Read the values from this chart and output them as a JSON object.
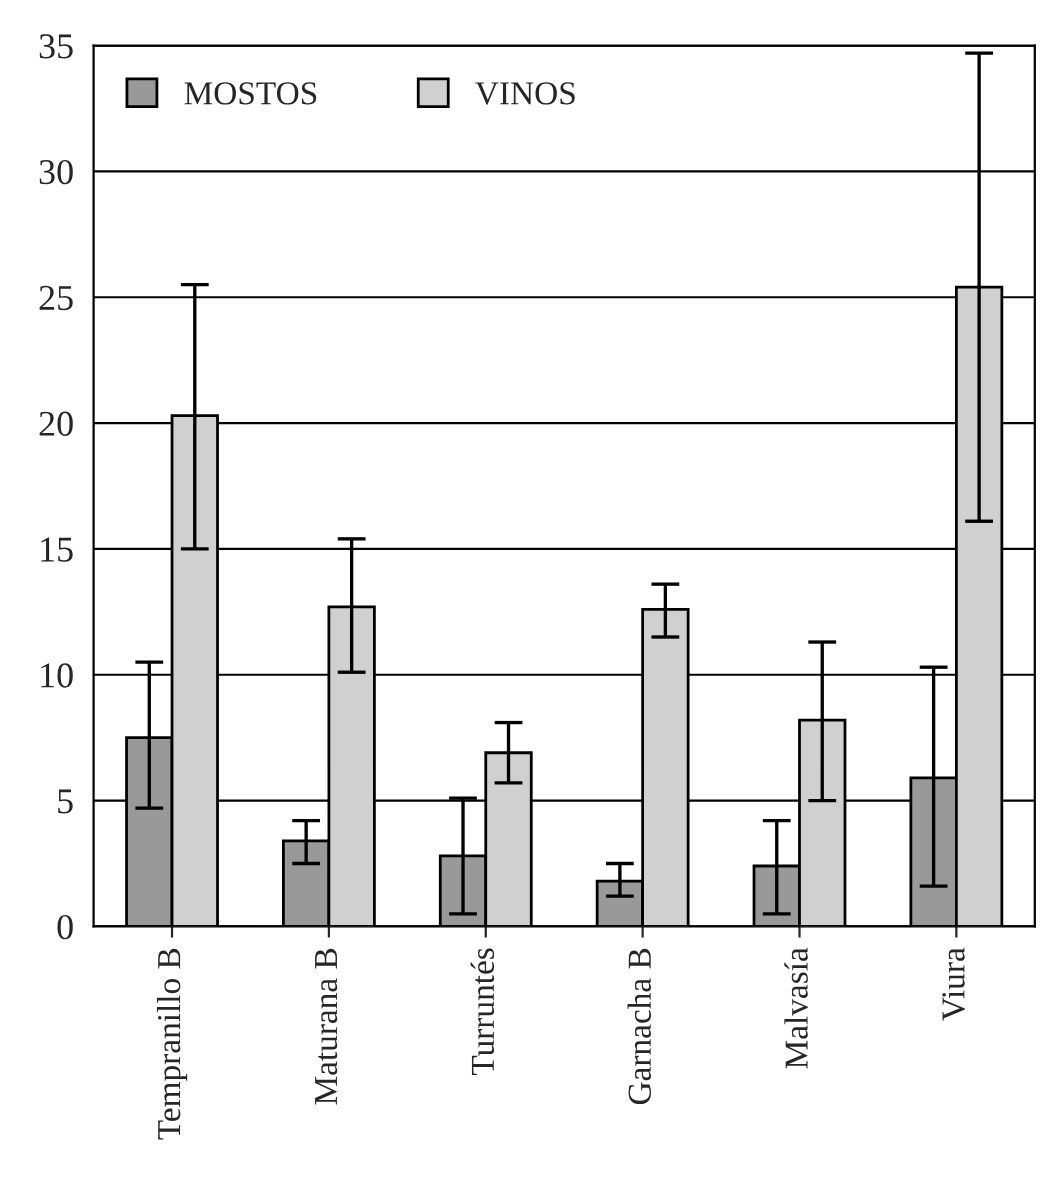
{
  "chart_data": {
    "type": "bar",
    "categories": [
      "Tempranillo B",
      "Maturana B",
      "Turruntés",
      "Garnacha B",
      "Malvasía",
      "Viura"
    ],
    "series": [
      {
        "name": "MOSTOS",
        "color": "#999999",
        "values": [
          7.5,
          3.4,
          2.8,
          1.8,
          2.4,
          5.9
        ],
        "errors": [
          [
            4.7,
            10.5
          ],
          [
            2.5,
            4.2
          ],
          [
            0.5,
            5.1
          ],
          [
            1.2,
            2.5
          ],
          [
            0.5,
            4.2
          ],
          [
            1.6,
            10.3
          ]
        ]
      },
      {
        "name": "VINOS",
        "color": "#d0d0d0",
        "values": [
          20.3,
          12.7,
          6.9,
          12.6,
          8.2,
          25.4
        ],
        "errors": [
          [
            15.0,
            25.5
          ],
          [
            10.1,
            15.4
          ],
          [
            5.7,
            8.1
          ],
          [
            11.5,
            13.6
          ],
          [
            5.0,
            11.3
          ],
          [
            16.1,
            34.7
          ]
        ]
      }
    ],
    "ylim": [
      0,
      35
    ],
    "yticks": [
      0,
      5,
      10,
      15,
      20,
      25,
      30,
      35
    ],
    "grid": "y",
    "legend": "top left"
  }
}
